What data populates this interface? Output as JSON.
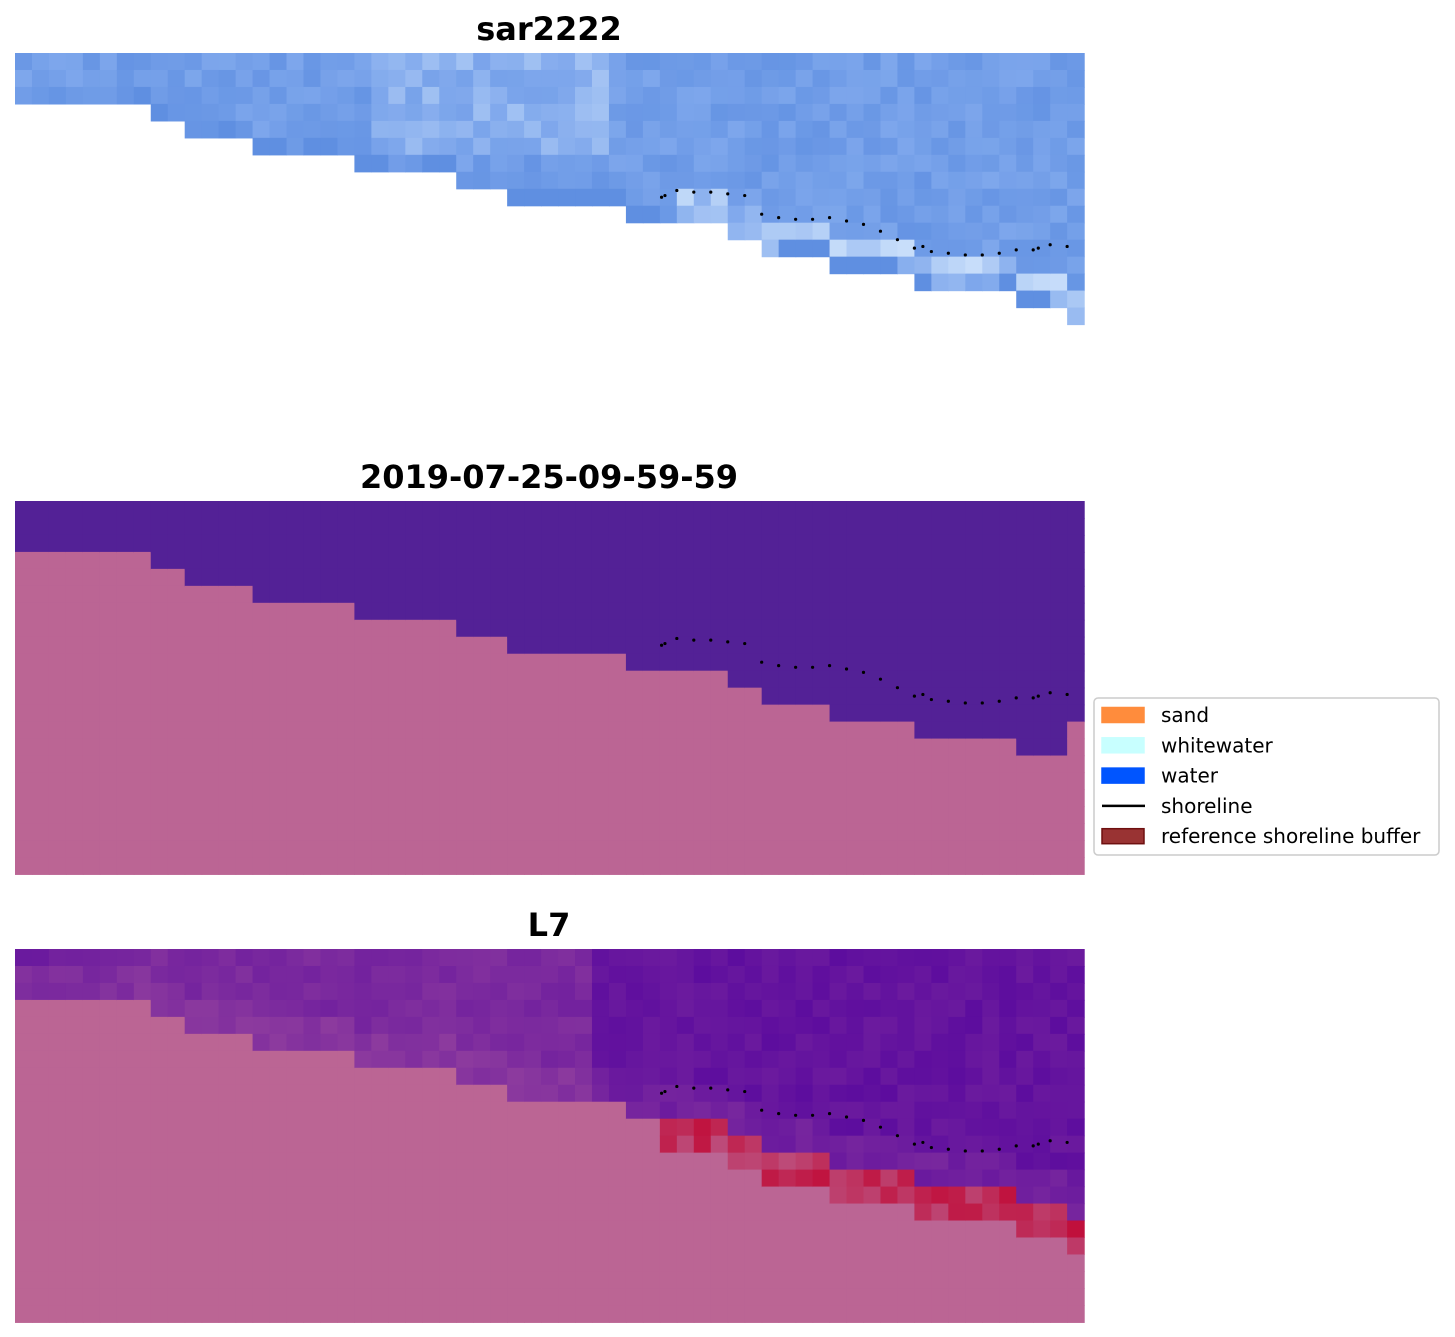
{
  "chart_data": [
    {
      "type": "heatmap",
      "title": "sar2222",
      "grid": false,
      "axes_visible": false,
      "image_grid": {
        "cols": 63,
        "rows": 21
      },
      "land_edge_row_by_col": [
        3,
        3,
        3,
        3,
        3,
        3,
        3,
        3,
        4,
        4,
        5,
        5,
        5,
        5,
        6,
        6,
        6,
        6,
        6,
        6,
        7,
        7,
        7,
        7,
        7,
        7,
        8,
        8,
        8,
        9,
        9,
        9,
        9,
        9,
        9,
        9,
        10,
        10,
        10,
        10,
        10,
        10,
        11,
        11,
        12,
        12,
        12,
        12,
        13,
        13,
        13,
        13,
        13,
        14,
        14,
        14,
        14,
        14,
        14,
        15,
        15,
        15,
        16
      ],
      "colors": {
        "water_low": "#5b8ce0",
        "water_mid": "#7ea7ec",
        "water_high": "#c8defa",
        "background": "#ffffff"
      }
    },
    {
      "type": "heatmap",
      "title": "2019-07-25-09-59-59",
      "grid": false,
      "axes_visible": false,
      "image_grid": {
        "cols": 63,
        "rows": 22
      },
      "land_edge_row_by_col": [
        3,
        3,
        3,
        3,
        3,
        3,
        3,
        3,
        4,
        4,
        5,
        5,
        5,
        5,
        6,
        6,
        6,
        6,
        6,
        6,
        7,
        7,
        7,
        7,
        7,
        7,
        8,
        8,
        8,
        9,
        9,
        9,
        9,
        9,
        9,
        9,
        10,
        10,
        10,
        10,
        10,
        10,
        11,
        11,
        12,
        12,
        12,
        12,
        13,
        13,
        13,
        13,
        13,
        14,
        14,
        14,
        14,
        14,
        14,
        15,
        15,
        15,
        13
      ],
      "colors": {
        "water": "#532196",
        "land": "#bb6594"
      }
    },
    {
      "type": "heatmap",
      "title": "L7",
      "grid": false,
      "axes_visible": false,
      "image_grid": {
        "cols": 63,
        "rows": 22
      },
      "land_edge_row_by_col": [
        3,
        3,
        3,
        3,
        3,
        3,
        3,
        3,
        4,
        4,
        5,
        5,
        5,
        5,
        6,
        6,
        6,
        6,
        6,
        6,
        7,
        7,
        7,
        7,
        7,
        7,
        8,
        8,
        8,
        9,
        9,
        9,
        9,
        9,
        9,
        9,
        10,
        10,
        10,
        10,
        10,
        10,
        11,
        11,
        12,
        12,
        12,
        12,
        13,
        13,
        13,
        13,
        13,
        14,
        14,
        14,
        14,
        14,
        14,
        15,
        15,
        15,
        16
      ],
      "colors": {
        "water_dark": "#5a0a9e",
        "water_light": "#8c3a9e",
        "land": "#bb6594",
        "edge_red": "#c0103c"
      }
    }
  ],
  "shoreline": {
    "style": "dotted",
    "color": "#000000",
    "x": [
      38.1,
      38.3,
      39.0,
      40.0,
      41.0,
      42.0,
      43.0,
      44.0,
      45.0,
      46.0,
      47.0,
      48.0,
      49.0,
      50.0,
      51.0,
      52.0,
      53.0,
      53.5,
      54.0,
      55.0,
      56.0,
      57.0,
      58.0,
      59.0,
      60.0,
      60.3,
      61.0,
      62.0
    ],
    "y": [
      8.5,
      8.4,
      8.1,
      8.2,
      8.2,
      8.3,
      8.4,
      9.5,
      9.7,
      9.8,
      9.8,
      9.7,
      9.9,
      10.1,
      10.5,
      11.0,
      11.5,
      11.4,
      11.7,
      11.8,
      11.9,
      11.9,
      11.8,
      11.6,
      11.6,
      11.5,
      11.3,
      11.4
    ]
  },
  "legend": {
    "placement": "right",
    "items": [
      {
        "label": "sand",
        "kind": "patch",
        "color": "#ff8c3c",
        "edge": "#ff8c3c"
      },
      {
        "label": "whitewater",
        "kind": "patch",
        "color": "#c8ffff",
        "edge": "#c8ffff"
      },
      {
        "label": "water",
        "kind": "patch",
        "color": "#0055ff",
        "edge": "#0055ff"
      },
      {
        "label": "shoreline",
        "kind": "line",
        "color": "#000000"
      },
      {
        "label": "reference shoreline buffer",
        "kind": "patch",
        "color": "#993333",
        "edge": "#6e1010"
      }
    ]
  }
}
